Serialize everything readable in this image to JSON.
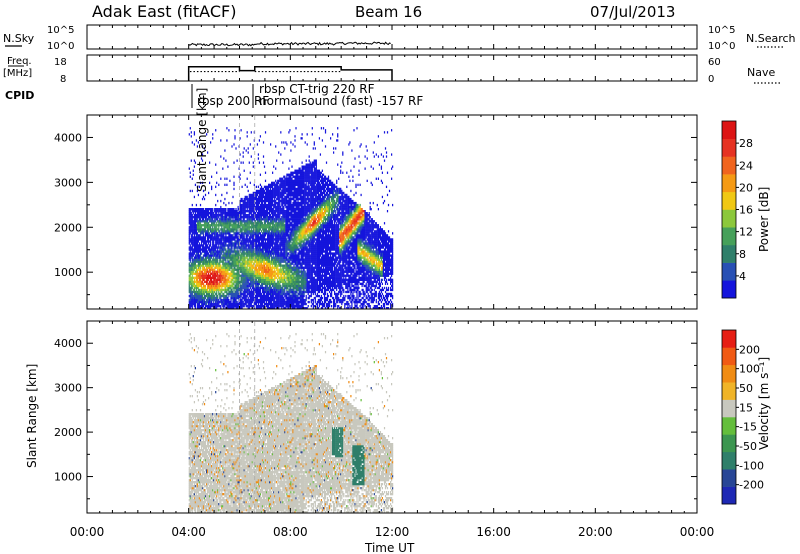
{
  "header": {
    "station": "Adak East (fitACF)",
    "beam": "Beam 16",
    "date": "07/Jul/2013"
  },
  "noise_panel": {
    "left_label": "N.Sky",
    "right_label": "N.Search",
    "left_ticks": [
      "10^5",
      "10^0"
    ],
    "right_ticks": [
      "10^5",
      "10^0"
    ]
  },
  "freq_panel": {
    "left_label_line1": "Freq.",
    "left_label_line2": "[MHz]",
    "left_ticks": [
      "18",
      "8"
    ],
    "right_label": "Nave",
    "right_ticks": [
      "60",
      "0"
    ]
  },
  "cpid": {
    "label": "CPID",
    "entries": [
      "rbsp 200 RF",
      "rbsp CT-trig 220 RF",
      "normalsound (fast) -157 RF"
    ]
  },
  "power_panel": {
    "ylabel": "Slant Range [km]",
    "yticks": [
      "4000",
      "3000",
      "2000",
      "1000"
    ],
    "colorbar_label": "Power [dB]",
    "colorbar_ticks": [
      "28",
      "24",
      "20",
      "16",
      "12",
      "8",
      "4"
    ],
    "colors": [
      "#1414dc",
      "#2850b4",
      "#2f7f6a",
      "#46a05a",
      "#8cc83c",
      "#f0c814",
      "#f59a14",
      "#f0641e",
      "#e63222",
      "#dc1414"
    ]
  },
  "velocity_panel": {
    "ylabel": "Slant Range [km]",
    "yticks": [
      "4000",
      "3000",
      "2000",
      "1000"
    ],
    "colorbar_label": "Velocity [m s⁻¹]",
    "colorbar_ticks": [
      "200",
      "100",
      "50",
      "15",
      "-15",
      "-50",
      "-100",
      "-200"
    ],
    "colors": [
      "#1e28b4",
      "#284696",
      "#2f7f6a",
      "#3c9650",
      "#64be3c",
      "#c8c8be",
      "#f0b428",
      "#f08c14",
      "#f05a14",
      "#e61e14"
    ]
  },
  "time_axis": {
    "label": "Time UT",
    "ticks": [
      "00:00",
      "04:00",
      "08:00",
      "12:00",
      "16:00",
      "20:00",
      "00:00"
    ]
  },
  "chart_data": {
    "type": "heatmap",
    "title": "Adak East (fitACF)",
    "x_range_hours": [
      0,
      24
    ],
    "y_range_km": [
      180,
      4500
    ],
    "data_window_hours": [
      4.0,
      12.0
    ],
    "cpid_switch_hours": [
      6.0,
      6.6
    ],
    "frequency_MHz": [
      {
        "start": 4.0,
        "end": 6.0,
        "value": 13.5
      },
      {
        "start": 6.0,
        "end": 6.6,
        "value": 12.0
      },
      {
        "start": 6.6,
        "end": 10.0,
        "value": 13.5
      },
      {
        "start": 10.0,
        "end": 12.0,
        "value": 12.3
      }
    ],
    "power_features": [
      {
        "name": "near-range band",
        "t": [
          4.0,
          8.5
        ],
        "km": [
          500,
          1500
        ],
        "peak_dB": 28
      },
      {
        "name": "diagonal echo 1",
        "t": [
          8.0,
          9.8
        ],
        "km": [
          1600,
          2600
        ],
        "peak_dB": 26
      },
      {
        "name": "diagonal echo 2",
        "t": [
          10.0,
          10.8
        ],
        "km": [
          1700,
          2600
        ],
        "peak_dB": 24
      },
      {
        "name": "late echo",
        "t": [
          10.5,
          11.5
        ],
        "km": [
          1000,
          1700
        ],
        "peak_dB": 20
      }
    ]
  }
}
